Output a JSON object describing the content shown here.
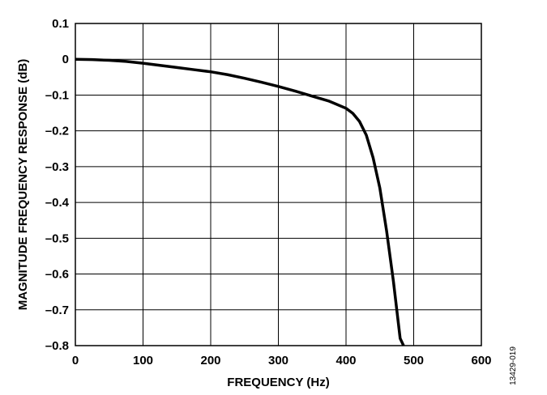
{
  "figure_id": "13429-019",
  "chart_data": {
    "type": "line",
    "title": "",
    "xlabel": "FREQUENCY (Hz)",
    "ylabel": "MAGNITUDE FREQUENCY RESPONSE (dB)",
    "xlim": [
      0,
      600
    ],
    "ylim": [
      -0.8,
      0.1
    ],
    "xticks": [
      0,
      100,
      200,
      300,
      400,
      500,
      600
    ],
    "xtick_labels": [
      "0",
      "100",
      "200",
      "300",
      "400",
      "500",
      "600"
    ],
    "yticks": [
      0.1,
      0,
      -0.1,
      -0.2,
      -0.3,
      -0.4,
      -0.5,
      -0.6,
      -0.7,
      -0.8
    ],
    "ytick_labels": [
      "0.1",
      "0",
      "–0.1",
      "–0.2",
      "–0.3",
      "–0.4",
      "–0.5",
      "–0.6",
      "–0.7",
      "–0.8"
    ],
    "grid": true,
    "line_color": "#000000",
    "series": [
      {
        "x": [
          0,
          25,
          50,
          75,
          100,
          125,
          150,
          175,
          200,
          225,
          250,
          275,
          300,
          325,
          350,
          375,
          400,
          410,
          420,
          430,
          440,
          450,
          460,
          470,
          480,
          485
        ],
        "y": [
          0,
          -0.001,
          -0.003,
          -0.006,
          -0.011,
          -0.017,
          -0.023,
          -0.029,
          -0.035,
          -0.043,
          -0.053,
          -0.064,
          -0.076,
          -0.089,
          -0.103,
          -0.117,
          -0.137,
          -0.151,
          -0.174,
          -0.212,
          -0.275,
          -0.36,
          -0.48,
          -0.62,
          -0.78,
          -0.8
        ]
      }
    ]
  }
}
